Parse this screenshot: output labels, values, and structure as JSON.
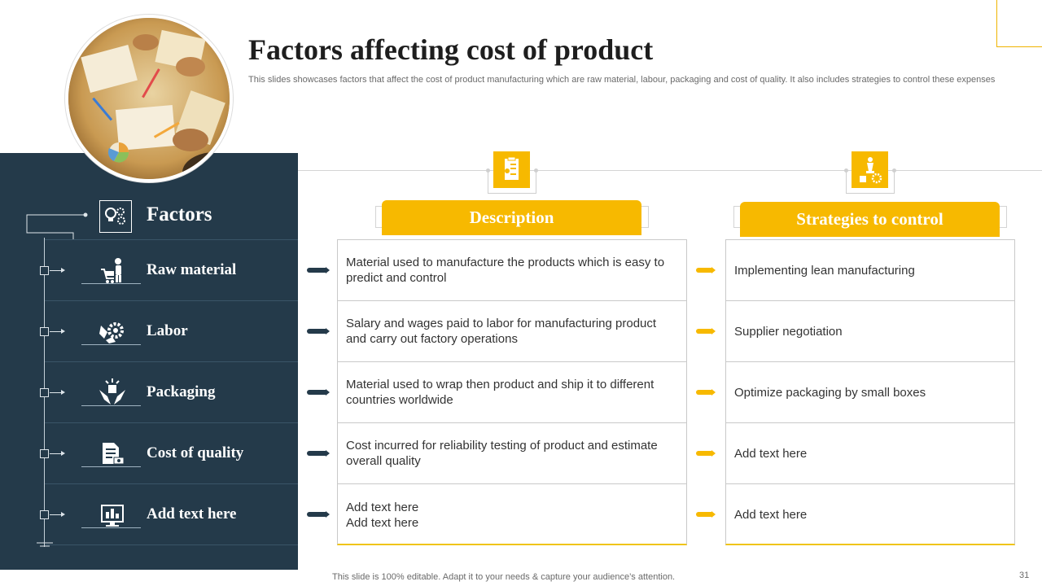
{
  "slide": {
    "title": "Factors affecting cost of product",
    "subtitle": "This slides showcases factors that affect the cost of product manufacturing which are raw material, labour, packaging and cost of quality. It also includes strategies to control these expenses",
    "footer": "This slide is 100% editable. Adapt it to your needs & capture your audience’s attention.",
    "page_number": "31"
  },
  "colors": {
    "accent": "#f7b900",
    "panel": "#243a4a"
  },
  "factors": {
    "heading": "Factors",
    "heading_icon": "lightbulb-gears-icon",
    "items": [
      {
        "label": "Raw material",
        "icon": "worker-cart-icon"
      },
      {
        "label": "Labor",
        "icon": "hand-gear-icon"
      },
      {
        "label": "Packaging",
        "icon": "hands-box-icon"
      },
      {
        "label": "Cost of quality",
        "icon": "document-money-icon"
      },
      {
        "label": "Add text here",
        "icon": "monitor-chart-icon"
      }
    ]
  },
  "description": {
    "heading": "Description",
    "icon": "clipboard-icon",
    "cells": [
      "Material used to manufacture  the products which is easy to predict and control",
      "Salary and wages paid to labor for manufacturing  product and carry out factory operations",
      "Material used to wrap then product and ship it to different countries worldwide",
      "Cost incurred for reliability testing of product and estimate overall quality",
      "Add text here\nAdd text here"
    ]
  },
  "strategies": {
    "heading": "Strategies to control",
    "icon": "strategy-chess-icon",
    "cells": [
      "Implementing  lean manufacturing",
      "Supplier negotiation",
      "Optimize packaging by small boxes",
      "Add text here",
      "Add text here"
    ]
  }
}
